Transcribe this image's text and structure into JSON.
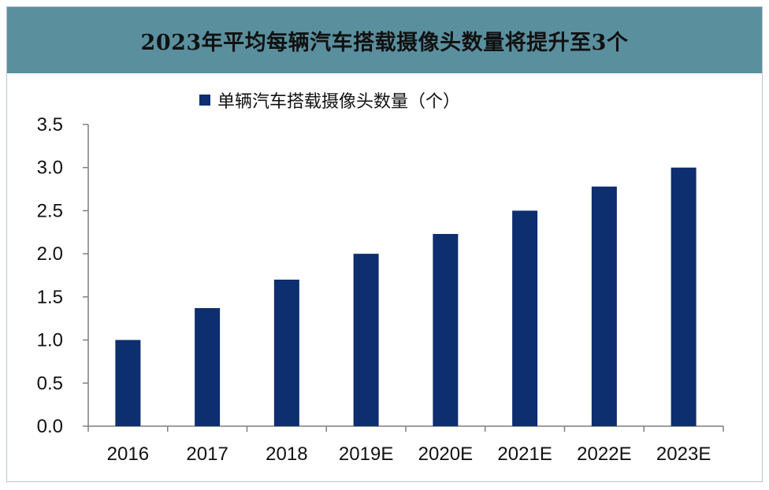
{
  "chart_data": {
    "type": "bar",
    "title": "2023年平均每辆汽车搭载摄像头数量将提升至3个",
    "categories": [
      "2016",
      "2017",
      "2018",
      "2019E",
      "2020E",
      "2021E",
      "2022E",
      "2023E"
    ],
    "series": [
      {
        "name": "单辆汽车搭载摄像头数量（个）",
        "values": [
          1.0,
          1.37,
          1.7,
          2.0,
          2.23,
          2.5,
          2.78,
          3.0
        ],
        "color": "#0d2e6f"
      }
    ],
    "yticks": [
      "0.0",
      "0.5",
      "1.0",
      "1.5",
      "2.0",
      "2.5",
      "3.0",
      "3.5"
    ],
    "ylim": [
      0,
      3.5
    ],
    "grid": false,
    "legend": "top-left"
  }
}
